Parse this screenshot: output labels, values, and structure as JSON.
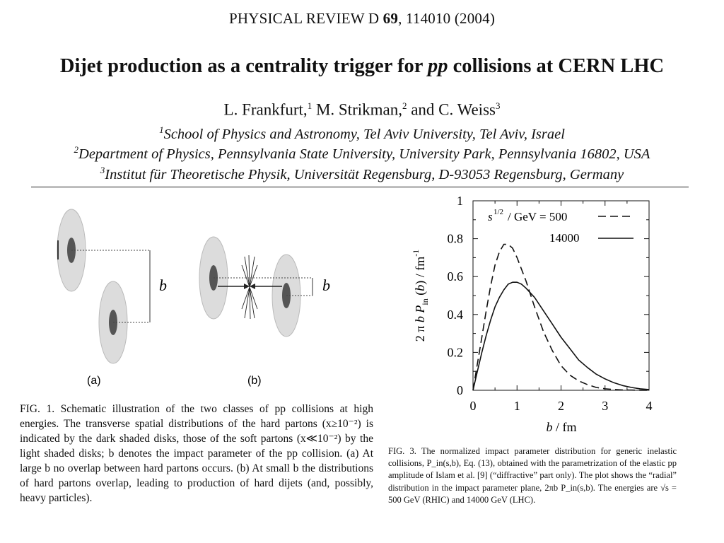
{
  "header": {
    "journal_name": "PHYSICAL REVIEW D",
    "volume": "69",
    "article_rest": ", 114010  (2004)"
  },
  "paper": {
    "title_part1": "Dijet production as a centrality trigger for ",
    "title_italic": "pp",
    "title_part2": " collisions at CERN LHC",
    "authors": [
      {
        "name": "L. Frankfurt,",
        "sup": "1"
      },
      {
        "name": " M. Strikman,",
        "sup": "2"
      },
      {
        "name": " and C. Weiss",
        "sup": "3"
      }
    ],
    "affiliations": [
      {
        "sup": "1",
        "text": "School of Physics and Astronomy, Tel Aviv University, Tel Aviv, Israel"
      },
      {
        "sup": "2",
        "text": "Department of Physics, Pennsylvania State University, University Park, Pennsylvania 16802, USA"
      },
      {
        "sup": "3",
        "text": "Institut für Theoretische Physik, Universität Regensburg, D-93053 Regensburg, Germany"
      }
    ]
  },
  "figure1": {
    "label_b": "b",
    "panel_a": "(a)",
    "panel_b": "(b)",
    "caption": "FIG. 1. Schematic illustration of the two classes of pp collisions at high energies. The transverse spatial distributions of the hard partons (x≥10⁻²) is indicated by the dark shaded disks, those of the soft partons (x≪10⁻²) by the light shaded disks; b denotes the impact parameter of the pp collision. (a) At large b no overlap between hard partons occurs. (b) At small b the distributions of hard partons overlap, leading to production of hard dijets (and, possibly, heavy particles).",
    "colors": {
      "light_disk": "#dcdcdc",
      "dark_disk": "#555555"
    }
  },
  "chart_data": {
    "type": "line",
    "xlabel": "b / fm",
    "ylabel": "2 π b P_in (b) / fm⁻¹",
    "xlim": [
      0,
      4
    ],
    "ylim": [
      0,
      1
    ],
    "x_ticks": [
      "0",
      "1",
      "2",
      "3",
      "4"
    ],
    "y_ticks": [
      "0",
      "0.2",
      "0.4",
      "0.6",
      "0.8",
      "1"
    ],
    "legend_title": "s^1/2 / GeV = 500",
    "legend_placement": "top-right",
    "series": [
      {
        "name": "500",
        "style": "dashed",
        "x": [
          0,
          0.1,
          0.2,
          0.3,
          0.4,
          0.5,
          0.6,
          0.7,
          0.8,
          0.9,
          1.0,
          1.2,
          1.4,
          1.6,
          1.8,
          2.0,
          2.2,
          2.4,
          2.6,
          2.8,
          3.0,
          3.2,
          3.4,
          3.6,
          3.8,
          4.0
        ],
        "y": [
          0,
          0.14,
          0.28,
          0.42,
          0.55,
          0.66,
          0.73,
          0.77,
          0.77,
          0.75,
          0.7,
          0.58,
          0.44,
          0.31,
          0.21,
          0.13,
          0.08,
          0.05,
          0.03,
          0.015,
          0.008,
          0.004,
          0.002,
          0.001,
          0.0005,
          0
        ]
      },
      {
        "name": "14000",
        "style": "solid",
        "x": [
          0,
          0.1,
          0.2,
          0.3,
          0.4,
          0.5,
          0.6,
          0.7,
          0.8,
          0.9,
          1.0,
          1.1,
          1.2,
          1.4,
          1.6,
          1.8,
          2.0,
          2.2,
          2.4,
          2.6,
          2.8,
          3.0,
          3.2,
          3.4,
          3.6,
          3.8,
          4.0
        ],
        "y": [
          0,
          0.1,
          0.2,
          0.29,
          0.37,
          0.44,
          0.49,
          0.53,
          0.56,
          0.57,
          0.57,
          0.56,
          0.54,
          0.49,
          0.42,
          0.35,
          0.28,
          0.22,
          0.16,
          0.12,
          0.085,
          0.06,
          0.04,
          0.025,
          0.015,
          0.008,
          0.004
        ]
      }
    ],
    "caption": "FIG. 3. The normalized impact parameter distribution for generic inelastic collisions, P_in(s,b), Eq. (13), obtained with the parametrization of the elastic pp amplitude of Islam et al. [9] (“diffractive” part only). The plot shows the “radial” distribution in the impact parameter plane, 2πb P_in(s,b). The energies are √s = 500 GeV (RHIC) and 14000 GeV (LHC)."
  }
}
